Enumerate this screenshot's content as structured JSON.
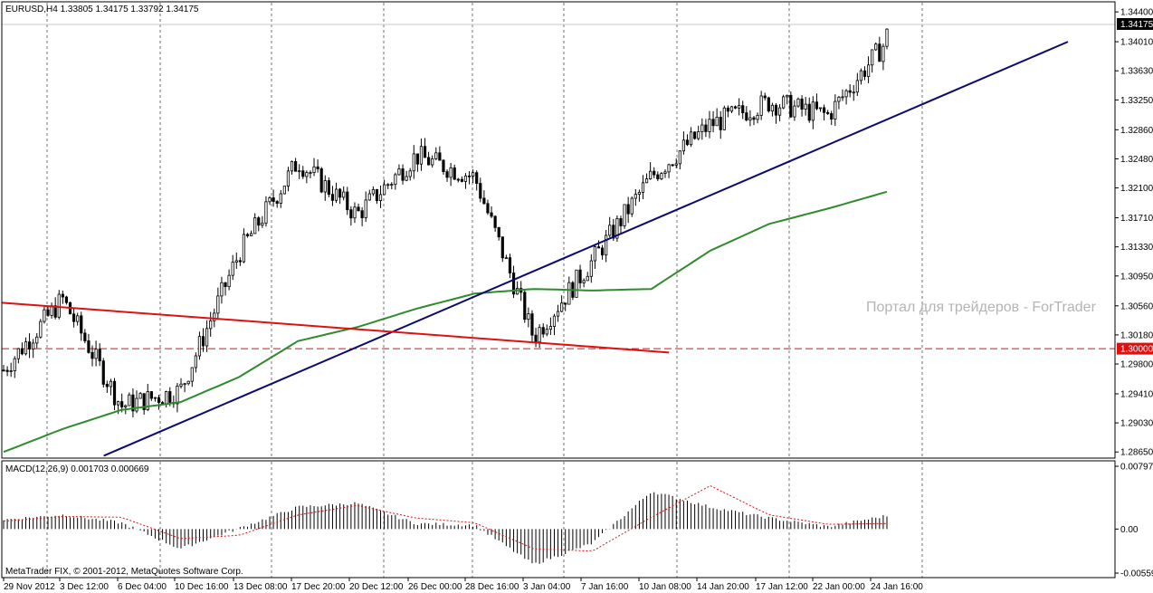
{
  "main_header": "EURUSD,H4  1.33805 1.34175 1.33792 1.34175",
  "macd_header": "MACD(12,26,9) 0.001703 0.000669",
  "copyright": "MetaTrader FIX, © 2001-2012, MetaQuotes Software Corp.",
  "watermark": "Портал для трейдеров - ForTrader",
  "current_price_label": "1.34175",
  "level_label": "1.30000",
  "colors": {
    "candles": "#000000",
    "ma": "#2e8b2e",
    "trend_support": "#0b0b6e",
    "trend_resistance": "#e01010",
    "level": "#e01010",
    "macd_hist": "#000000",
    "macd_signal": "#e01010",
    "grid": "#000000",
    "watermark": "#b4b4b4"
  },
  "price_axis_labels": [
    "1.34400",
    "1.34010",
    "1.33630",
    "1.33250",
    "1.32860",
    "1.32480",
    "1.32100",
    "1.31710",
    "1.31330",
    "1.30950",
    "1.30560",
    "1.30180",
    "1.29800",
    "1.29410",
    "1.29030",
    "1.28650"
  ],
  "macd_axis_labels": [
    "0.007975",
    "0.00",
    "-0.00559"
  ],
  "time_labels": [
    "29 Nov 2012",
    "3 Dec 12:00",
    "6 Dec 04:00",
    "10 Dec 16:00",
    "13 Dec 08:00",
    "17 Dec 20:00",
    "20 Dec 12:00",
    "26 Dec 00:00",
    "28 Dec 16:00",
    "3 Jan 04:00",
    "7 Jan 16:00",
    "10 Jan 08:00",
    "14 Jan 20:00",
    "17 Jan 12:00",
    "22 Jan 00:00",
    "24 Jan 16:00"
  ],
  "chart_data": {
    "type": "line",
    "symbol": "EURUSD",
    "timeframe": "H4",
    "ohlc_last": {
      "open": 1.33805,
      "high": 1.34175,
      "low": 1.33792,
      "close": 1.34175
    },
    "price_range": [
      1.2857,
      1.3452
    ],
    "price_ticks": [
      1.344,
      1.3401,
      1.3363,
      1.3325,
      1.3286,
      1.3248,
      1.321,
      1.3171,
      1.3133,
      1.3095,
      1.3056,
      1.3018,
      1.298,
      1.2941,
      1.2903,
      1.2865
    ],
    "horizontal_level": 1.3,
    "x": [
      "29 Nov 2012",
      "3 Dec 12:00",
      "6 Dec 04:00",
      "10 Dec 16:00",
      "13 Dec 08:00",
      "17 Dec 20:00",
      "20 Dec 12:00",
      "26 Dec 00:00",
      "28 Dec 16:00",
      "3 Jan 04:00",
      "7 Jan 16:00",
      "10 Jan 08:00",
      "14 Jan 20:00",
      "17 Jan 12:00",
      "22 Jan 00:00",
      "24 Jan 16:00"
    ],
    "series": [
      {
        "values": [
          1.2972,
          1.3065,
          1.2925,
          1.2945,
          1.3125,
          1.3245,
          1.3175,
          1.3252,
          1.3224,
          1.3015,
          1.3115,
          1.3225,
          1.3293,
          1.3322,
          1.3305,
          1.3402
        ]
      },
      {
        "values": [
          1.2865,
          1.2895,
          1.292,
          1.293,
          1.2963,
          1.301,
          1.3028,
          1.3052,
          1.3072,
          1.3078,
          1.3076,
          1.3078,
          1.3128,
          1.3163,
          1.3183,
          1.3205
        ]
      }
    ],
    "macd": {
      "range": [
        -0.00559,
        0.007975
      ],
      "histogram": [
        0.0012,
        0.0018,
        0.0008,
        -0.0025,
        0.0001,
        0.0028,
        0.0033,
        0.0007,
        0.0005,
        -0.0045,
        -0.0018,
        0.0048,
        0.0028,
        0.0014,
        0.0003,
        0.0017
      ],
      "signal": [
        0.001,
        0.0016,
        0.0015,
        -0.0012,
        -0.0008,
        0.0018,
        0.003,
        0.0014,
        0.0008,
        -0.0025,
        -0.0028,
        0.0015,
        0.0055,
        0.0018,
        0.0006,
        0.0007
      ]
    }
  }
}
